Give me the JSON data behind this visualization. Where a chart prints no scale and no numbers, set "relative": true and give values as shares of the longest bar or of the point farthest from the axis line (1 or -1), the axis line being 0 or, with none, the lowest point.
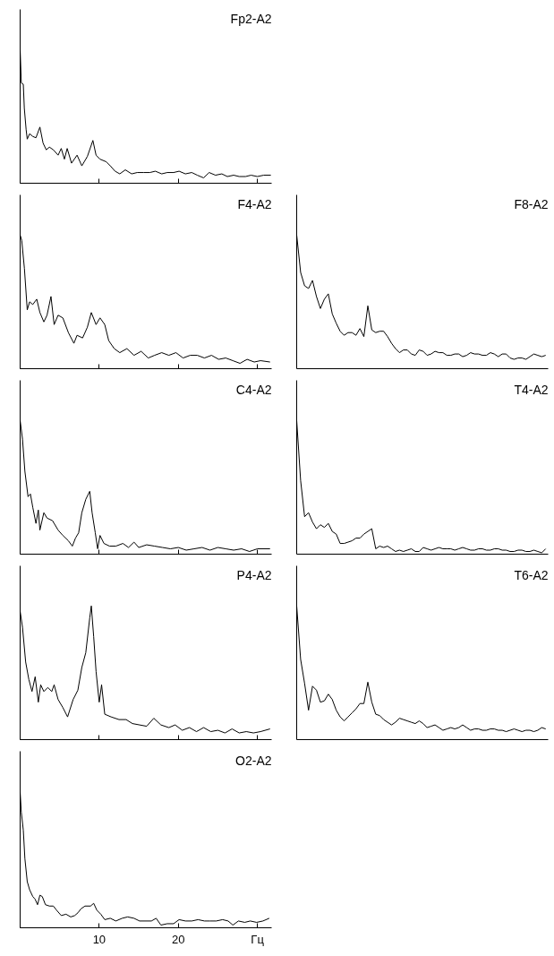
{
  "chart_data": [
    {
      "type": "line",
      "title": "Fp2-A2",
      "color": "#000000",
      "relative": true,
      "tick_labels": false,
      "xlim": [
        0,
        31.8
      ],
      "xticks": [
        {
          "value": 0,
          "label": null
        },
        {
          "value": 10,
          "label": null
        },
        {
          "value": 20,
          "label": null
        },
        {
          "value": 30,
          "label": null
        }
      ],
      "x": [
        0,
        0.15,
        0.4,
        0.53,
        0.76,
        0.9,
        1.2,
        1.6,
        2.0,
        2.5,
        2.9,
        3.3,
        3.7,
        4.2,
        4.8,
        5.2,
        5.6,
        5.95,
        6.5,
        7.2,
        7.8,
        8.5,
        9.2,
        9.6,
        10.1,
        10.9,
        11.4,
        12.0,
        12.6,
        13.3,
        14.1,
        14.8,
        15.6,
        16.4,
        17.1,
        17.9,
        18.6,
        19.4,
        20.1,
        20.9,
        21.7,
        22.4,
        23.2,
        23.9,
        24.7,
        25.5,
        26.2,
        27.0,
        27.7,
        28.5,
        29.2,
        30.0,
        30.8,
        31.7
      ],
      "values": [
        1.0,
        0.75,
        0.74,
        0.56,
        0.4,
        0.33,
        0.37,
        0.35,
        0.34,
        0.42,
        0.3,
        0.25,
        0.27,
        0.25,
        0.21,
        0.26,
        0.18,
        0.26,
        0.15,
        0.21,
        0.13,
        0.2,
        0.32,
        0.21,
        0.18,
        0.16,
        0.13,
        0.09,
        0.07,
        0.1,
        0.07,
        0.08,
        0.08,
        0.08,
        0.09,
        0.07,
        0.08,
        0.08,
        0.09,
        0.07,
        0.08,
        0.06,
        0.04,
        0.08,
        0.06,
        0.07,
        0.05,
        0.06,
        0.05,
        0.05,
        0.06,
        0.05,
        0.06,
        0.06
      ]
    },
    {
      "type": "line",
      "title": "F4-A2",
      "color": "#000000",
      "relative": true,
      "tick_labels": false,
      "xlim": [
        0,
        31.8
      ],
      "xticks": [
        {
          "value": 0,
          "label": null
        },
        {
          "value": 10,
          "label": null
        },
        {
          "value": 20,
          "label": null
        },
        {
          "value": 30,
          "label": null
        }
      ],
      "x": [
        0,
        0.2,
        0.54,
        0.9,
        1.2,
        1.6,
        2.1,
        2.5,
        3.0,
        3.4,
        3.9,
        4.3,
        4.8,
        5.4,
        6.1,
        6.8,
        7.2,
        7.9,
        8.5,
        9.0,
        9.6,
        10.1,
        10.7,
        11.2,
        11.9,
        12.6,
        13.5,
        14.4,
        15.3,
        16.2,
        17.0,
        17.9,
        18.8,
        19.7,
        20.6,
        21.5,
        22.4,
        23.3,
        24.2,
        25.1,
        26.0,
        26.9,
        27.8,
        28.7,
        29.6,
        30.4,
        31.6
      ],
      "values": [
        1.0,
        0.96,
        0.75,
        0.44,
        0.5,
        0.48,
        0.52,
        0.42,
        0.35,
        0.4,
        0.54,
        0.33,
        0.4,
        0.38,
        0.27,
        0.19,
        0.25,
        0.23,
        0.31,
        0.42,
        0.33,
        0.38,
        0.33,
        0.21,
        0.15,
        0.12,
        0.15,
        0.1,
        0.13,
        0.08,
        0.1,
        0.12,
        0.1,
        0.12,
        0.08,
        0.1,
        0.1,
        0.08,
        0.1,
        0.07,
        0.08,
        0.06,
        0.04,
        0.07,
        0.05,
        0.06,
        0.05
      ]
    },
    {
      "type": "line",
      "title": "F8-A2",
      "color": "#000000",
      "relative": true,
      "tick_labels": false,
      "categories": [
        null,
        null,
        null,
        null,
        null,
        null,
        null,
        null,
        null,
        null,
        null,
        null,
        null,
        null,
        null,
        null,
        null,
        null,
        null,
        null,
        null,
        null,
        null,
        null,
        null,
        null,
        null,
        null,
        null,
        null,
        null,
        null,
        null,
        null,
        null,
        null,
        null,
        null,
        null,
        null,
        null,
        null,
        null,
        null,
        null,
        null,
        null,
        null,
        null,
        null,
        null,
        null,
        null,
        null,
        null,
        null,
        null,
        null,
        null,
        null,
        null,
        null,
        null,
        null
      ],
      "values": [
        1.0,
        0.72,
        0.62,
        0.6,
        0.66,
        0.54,
        0.45,
        0.52,
        0.56,
        0.41,
        0.34,
        0.28,
        0.25,
        0.27,
        0.27,
        0.25,
        0.3,
        0.24,
        0.47,
        0.29,
        0.27,
        0.28,
        0.28,
        0.24,
        0.19,
        0.15,
        0.12,
        0.14,
        0.14,
        0.11,
        0.1,
        0.14,
        0.13,
        0.1,
        0.11,
        0.13,
        0.12,
        0.12,
        0.1,
        0.1,
        0.11,
        0.11,
        0.09,
        0.1,
        0.12,
        0.11,
        0.11,
        0.1,
        0.1,
        0.12,
        0.11,
        0.09,
        0.11,
        0.11,
        0.08,
        0.07,
        0.08,
        0.08,
        0.07,
        0.09,
        0.11,
        0.1,
        0.09,
        0.1
      ]
    },
    {
      "type": "line",
      "title": "C4-A2",
      "color": "#000000",
      "relative": true,
      "tick_labels": false,
      "xlim": [
        0,
        31.8
      ],
      "xticks": [
        {
          "value": 0,
          "label": null
        },
        {
          "value": 10,
          "label": null
        },
        {
          "value": 20,
          "label": null
        },
        {
          "value": 30,
          "label": null
        }
      ],
      "x": [
        0,
        0.3,
        0.6,
        1.0,
        1.3,
        1.6,
        2.0,
        2.3,
        2.5,
        3.0,
        3.4,
        4.1,
        4.8,
        5.4,
        6.1,
        6.6,
        7.0,
        7.4,
        7.8,
        8.3,
        8.8,
        9.1,
        9.5,
        9.8,
        10.1,
        10.6,
        11.3,
        12.1,
        13.0,
        13.7,
        14.4,
        15.0,
        16.0,
        17.0,
        18.0,
        19.0,
        20.0,
        21.0,
        22.0,
        23.0,
        24.0,
        25.0,
        26.0,
        27.0,
        28.0,
        29.0,
        30.0,
        31.6
      ],
      "values": [
        1.0,
        0.86,
        0.62,
        0.43,
        0.45,
        0.35,
        0.23,
        0.33,
        0.18,
        0.31,
        0.27,
        0.25,
        0.18,
        0.14,
        0.1,
        0.06,
        0.12,
        0.16,
        0.31,
        0.41,
        0.47,
        0.31,
        0.16,
        0.04,
        0.14,
        0.08,
        0.06,
        0.06,
        0.08,
        0.05,
        0.09,
        0.05,
        0.07,
        0.06,
        0.05,
        0.04,
        0.05,
        0.03,
        0.04,
        0.05,
        0.03,
        0.05,
        0.04,
        0.03,
        0.04,
        0.02,
        0.04,
        0.04
      ]
    },
    {
      "type": "line",
      "title": "T4-A2",
      "color": "#000000",
      "relative": true,
      "tick_labels": false,
      "categories": [
        null,
        null,
        null,
        null,
        null,
        null,
        null,
        null,
        null,
        null,
        null,
        null,
        null,
        null,
        null,
        null,
        null,
        null,
        null,
        null,
        null,
        null,
        null,
        null,
        null,
        null,
        null,
        null,
        null,
        null,
        null,
        null,
        null,
        null,
        null,
        null,
        null,
        null,
        null,
        null,
        null,
        null,
        null,
        null,
        null,
        null,
        null,
        null,
        null,
        null,
        null,
        null,
        null,
        null,
        null,
        null,
        null,
        null,
        null,
        null,
        null,
        null,
        null,
        null
      ],
      "values": [
        1.0,
        0.55,
        0.28,
        0.31,
        0.24,
        0.19,
        0.22,
        0.2,
        0.23,
        0.17,
        0.15,
        0.08,
        0.08,
        0.09,
        0.1,
        0.12,
        0.12,
        0.15,
        0.17,
        0.19,
        0.04,
        0.06,
        0.05,
        0.06,
        0.04,
        0.02,
        0.03,
        0.02,
        0.03,
        0.04,
        0.02,
        0.02,
        0.05,
        0.04,
        0.03,
        0.04,
        0.05,
        0.04,
        0.04,
        0.04,
        0.03,
        0.04,
        0.05,
        0.04,
        0.03,
        0.03,
        0.04,
        0.04,
        0.03,
        0.03,
        0.04,
        0.04,
        0.03,
        0.03,
        0.02,
        0.02,
        0.03,
        0.03,
        0.02,
        0.02,
        0.03,
        0.02,
        0.01,
        0.04
      ]
    },
    {
      "type": "line",
      "title": "P4-A2",
      "color": "#000000",
      "relative": true,
      "tick_labels": false,
      "xlim": [
        0,
        31.8
      ],
      "xticks": [
        {
          "value": 0,
          "label": null
        },
        {
          "value": 10,
          "label": null
        },
        {
          "value": 20,
          "label": null
        },
        {
          "value": 30,
          "label": null
        }
      ],
      "x": [
        0,
        0.3,
        0.7,
        1.1,
        1.5,
        1.9,
        2.3,
        2.6,
        3.0,
        3.5,
        4.0,
        4.3,
        4.8,
        5.4,
        6.0,
        6.7,
        7.3,
        7.8,
        8.3,
        8.8,
        9.0,
        9.3,
        9.6,
        10.0,
        10.3,
        10.7,
        11.5,
        12.5,
        13.4,
        14.2,
        15.1,
        16.0,
        16.9,
        17.8,
        18.8,
        19.6,
        20.5,
        21.4,
        22.3,
        23.2,
        24.1,
        25.0,
        25.9,
        26.8,
        27.7,
        28.6,
        29.5,
        30.4,
        31.6
      ],
      "values": [
        0.96,
        0.84,
        0.58,
        0.45,
        0.36,
        0.47,
        0.28,
        0.41,
        0.36,
        0.39,
        0.36,
        0.41,
        0.3,
        0.24,
        0.17,
        0.3,
        0.37,
        0.54,
        0.65,
        0.91,
        1.0,
        0.77,
        0.51,
        0.28,
        0.41,
        0.19,
        0.17,
        0.15,
        0.15,
        0.12,
        0.11,
        0.1,
        0.16,
        0.11,
        0.09,
        0.11,
        0.07,
        0.09,
        0.06,
        0.09,
        0.06,
        0.07,
        0.05,
        0.08,
        0.05,
        0.06,
        0.05,
        0.06,
        0.08
      ]
    },
    {
      "type": "line",
      "title": "T6-A2",
      "color": "#000000",
      "relative": true,
      "tick_labels": false,
      "categories": [
        null,
        null,
        null,
        null,
        null,
        null,
        null,
        null,
        null,
        null,
        null,
        null,
        null,
        null,
        null,
        null,
        null,
        null,
        null,
        null,
        null,
        null,
        null,
        null,
        null,
        null,
        null,
        null,
        null,
        null,
        null,
        null,
        null,
        null,
        null,
        null,
        null,
        null,
        null,
        null,
        null,
        null,
        null,
        null,
        null,
        null,
        null,
        null,
        null,
        null,
        null,
        null,
        null,
        null,
        null,
        null,
        null,
        null,
        null,
        null,
        null,
        null,
        null,
        null
      ],
      "values": [
        1.0,
        0.6,
        0.42,
        0.22,
        0.4,
        0.37,
        0.28,
        0.29,
        0.34,
        0.3,
        0.22,
        0.17,
        0.14,
        0.17,
        0.2,
        0.23,
        0.27,
        0.27,
        0.43,
        0.28,
        0.19,
        0.18,
        0.15,
        0.13,
        0.11,
        0.13,
        0.16,
        0.15,
        0.14,
        0.13,
        0.12,
        0.14,
        0.12,
        0.09,
        0.1,
        0.11,
        0.09,
        0.07,
        0.08,
        0.09,
        0.08,
        0.09,
        0.11,
        0.09,
        0.07,
        0.08,
        0.08,
        0.07,
        0.07,
        0.08,
        0.08,
        0.07,
        0.07,
        0.06,
        0.07,
        0.08,
        0.07,
        0.06,
        0.07,
        0.07,
        0.06,
        0.07,
        0.09,
        0.08
      ]
    },
    {
      "type": "line",
      "title": "O2-A2",
      "color": "#000000",
      "relative": true,
      "tick_labels": "x",
      "xlim": [
        0,
        31.8
      ],
      "xticks": [
        {
          "value": 0,
          "label": null
        },
        10,
        20,
        {
          "value": 30,
          "label": "Гц"
        }
      ],
      "x": [
        0,
        0.15,
        0.4,
        0.6,
        0.9,
        1.2,
        1.6,
        1.9,
        2.2,
        2.5,
        2.8,
        3.2,
        3.7,
        4.2,
        4.6,
        5.2,
        5.8,
        6.4,
        6.9,
        7.3,
        7.7,
        8.2,
        8.9,
        9.3,
        9.7,
        10.2,
        10.7,
        11.4,
        12.1,
        12.9,
        13.6,
        14.4,
        15.1,
        15.9,
        16.6,
        17.2,
        17.8,
        18.6,
        19.4,
        20.1,
        20.9,
        21.7,
        22.5,
        23.3,
        24.0,
        24.8,
        25.6,
        26.3,
        26.9,
        27.6,
        28.4,
        29.1,
        29.9,
        30.7,
        31.5
      ],
      "values": [
        1.0,
        0.85,
        0.72,
        0.51,
        0.34,
        0.28,
        0.23,
        0.21,
        0.17,
        0.24,
        0.23,
        0.17,
        0.16,
        0.16,
        0.13,
        0.09,
        0.1,
        0.08,
        0.09,
        0.11,
        0.14,
        0.16,
        0.16,
        0.18,
        0.13,
        0.1,
        0.06,
        0.07,
        0.05,
        0.07,
        0.08,
        0.07,
        0.05,
        0.05,
        0.05,
        0.07,
        0.02,
        0.03,
        0.03,
        0.06,
        0.05,
        0.05,
        0.06,
        0.05,
        0.05,
        0.05,
        0.06,
        0.05,
        0.02,
        0.05,
        0.04,
        0.05,
        0.04,
        0.05,
        0.07
      ]
    }
  ]
}
